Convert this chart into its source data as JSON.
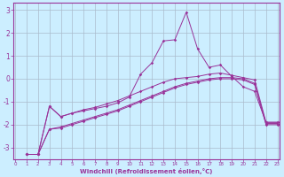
{
  "xlabel": "Windchill (Refroidissement éolien,°C)",
  "x_ticks": [
    0,
    1,
    2,
    3,
    4,
    5,
    6,
    7,
    8,
    9,
    10,
    11,
    12,
    13,
    14,
    15,
    16,
    17,
    18,
    19,
    20,
    21,
    22,
    23
  ],
  "ylim": [
    -3.5,
    3.3
  ],
  "xlim": [
    -0.2,
    23.2
  ],
  "yticks": [
    -3,
    -2,
    -1,
    0,
    1,
    2,
    3
  ],
  "bg_color": "#cceeff",
  "grid_color": "#aabbcc",
  "line_color": "#993399",
  "s1_x": [
    1,
    2,
    3,
    4,
    5,
    6,
    7,
    8,
    9,
    10,
    11,
    12,
    13,
    14,
    15,
    16,
    17,
    18,
    19,
    20,
    21,
    22,
    23
  ],
  "s1_y": [
    -3.3,
    -3.3,
    -1.2,
    -1.65,
    -1.5,
    -1.4,
    -1.3,
    -1.2,
    -1.05,
    -0.8,
    0.2,
    0.7,
    1.65,
    1.7,
    2.9,
    1.3,
    0.5,
    0.6,
    0.1,
    -0.35,
    -0.55,
    -1.9,
    -1.9
  ],
  "s2_x": [
    1,
    2,
    3,
    4,
    5,
    6,
    7,
    8,
    9,
    10,
    11,
    12,
    13,
    14,
    15,
    16,
    17,
    18,
    19,
    20,
    21,
    22,
    23
  ],
  "s2_y": [
    -3.3,
    -3.3,
    -1.2,
    -1.65,
    -1.5,
    -1.35,
    -1.25,
    -1.1,
    -0.95,
    -0.75,
    -0.55,
    -0.35,
    -0.15,
    -0.0,
    0.05,
    0.1,
    0.2,
    0.25,
    0.15,
    0.05,
    -0.05,
    -1.9,
    -1.9
  ],
  "s3_x": [
    1,
    2,
    3,
    4,
    5,
    6,
    7,
    8,
    9,
    10,
    11,
    12,
    13,
    14,
    15,
    16,
    17,
    18,
    19,
    20,
    21,
    22,
    23
  ],
  "s3_y": [
    -3.3,
    -3.3,
    -2.2,
    -2.1,
    -1.95,
    -1.8,
    -1.65,
    -1.5,
    -1.35,
    -1.15,
    -0.95,
    -0.75,
    -0.55,
    -0.35,
    -0.2,
    -0.1,
    0.0,
    0.05,
    0.05,
    0.0,
    -0.2,
    -1.95,
    -1.95
  ],
  "s4_x": [
    1,
    2,
    3,
    4,
    5,
    6,
    7,
    8,
    9,
    10,
    11,
    12,
    13,
    14,
    15,
    16,
    17,
    18,
    19,
    20,
    21,
    22,
    23
  ],
  "s4_y": [
    -3.3,
    -3.3,
    -2.2,
    -2.15,
    -2.0,
    -1.85,
    -1.7,
    -1.55,
    -1.4,
    -1.2,
    -1.0,
    -0.8,
    -0.6,
    -0.4,
    -0.25,
    -0.15,
    -0.05,
    0.0,
    0.0,
    -0.05,
    -0.25,
    -2.0,
    -2.0
  ]
}
